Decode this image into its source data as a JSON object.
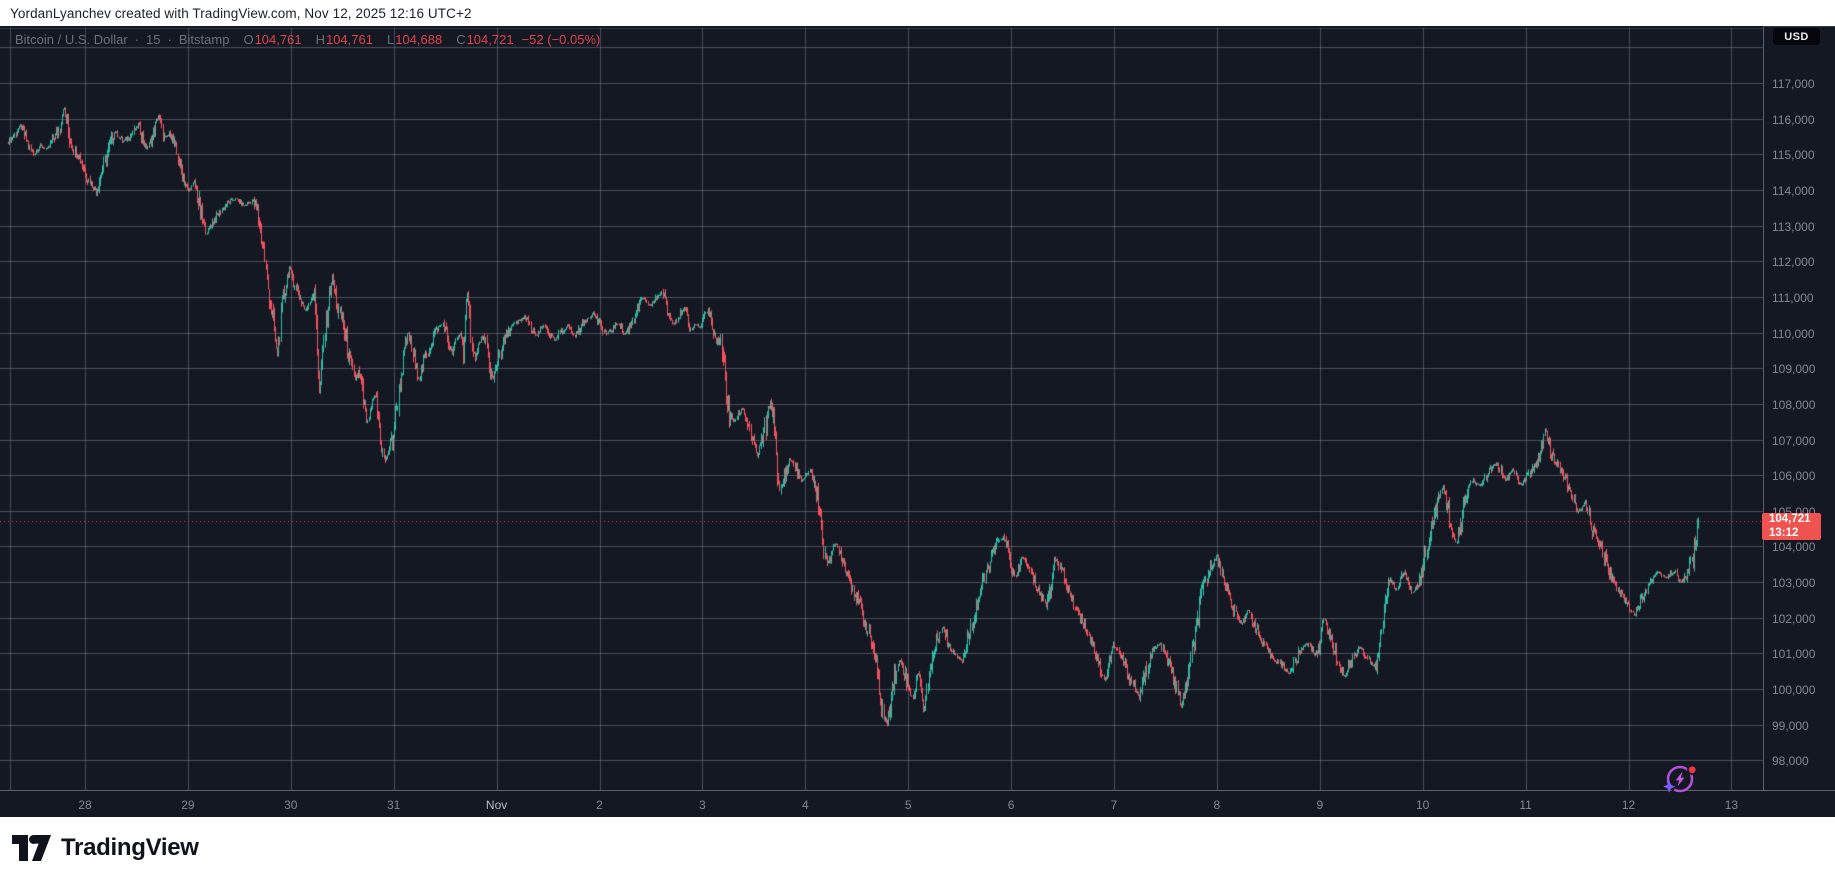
{
  "attribution": "YordanLyanchev created with TradingView.com, Nov 12, 2025 12:16 UTC+2",
  "header": {
    "symbol_title": "Bitcoin / U.S. Dollar",
    "interval": "15",
    "exchange": "Bitstamp",
    "sep": "·",
    "ohlc": {
      "o_label": "O",
      "o": "104,761",
      "h_label": "H",
      "h": "104,761",
      "l_label": "L",
      "l": "104,688",
      "c_label": "C",
      "c": "104,721",
      "change": "−52 (−0.05%)"
    }
  },
  "currency_button": "USD",
  "price_label": {
    "price": "104,721",
    "countdown": "13:12"
  },
  "logo_text": "TradingView",
  "colors": {
    "background": "#141822",
    "grid": "rgba(151,155,170,0.42)",
    "candle_up": "#2fbda6",
    "candle_down": "#f4525f",
    "accent_red": "#f23645",
    "badge": "#ef5350",
    "axis_text": "#838792",
    "flash_purple": "#b44fd8",
    "flash_indigo": "#7c5cff"
  },
  "chart_data": {
    "type": "candlestick",
    "title": "Bitcoin / U.S. Dollar · 15 · Bitstamp",
    "symbol": "BTC/USD",
    "exchange": "Bitstamp",
    "interval_minutes": 15,
    "current_price": 104721,
    "countdown": "13:12",
    "ohlc_current": {
      "open": 104761,
      "high": 104761,
      "low": 104688,
      "close": 104721,
      "change": -52,
      "change_pct": -0.05
    },
    "price_axis": {
      "min": 98000,
      "max": 117000,
      "step": 1000
    },
    "time_axis": {
      "labels": [
        "28",
        "29",
        "30",
        "31",
        "Nov",
        "2",
        "3",
        "4",
        "5",
        "6",
        "7",
        "8",
        "9",
        "10",
        "11",
        "12",
        "13"
      ],
      "month_label_index": 4
    },
    "range_high": 116430,
    "range_low": 98950,
    "price_path": [
      [
        8,
        115350
      ],
      [
        14,
        115550
      ],
      [
        20,
        115820
      ],
      [
        26,
        115400
      ],
      [
        33,
        114980
      ],
      [
        40,
        115250
      ],
      [
        47,
        115120
      ],
      [
        54,
        115480
      ],
      [
        59,
        115700
      ],
      [
        63,
        116340
      ],
      [
        68,
        115600
      ],
      [
        73,
        115150
      ],
      [
        80,
        114880
      ],
      [
        87,
        114350
      ],
      [
        96,
        113960
      ],
      [
        101,
        114450
      ],
      [
        108,
        115120
      ],
      [
        115,
        115660
      ],
      [
        122,
        115350
      ],
      [
        130,
        115520
      ],
      [
        138,
        115820
      ],
      [
        146,
        115150
      ],
      [
        152,
        115450
      ],
      [
        158,
        116120
      ],
      [
        164,
        115420
      ],
      [
        170,
        115600
      ],
      [
        176,
        115050
      ],
      [
        182,
        114400
      ],
      [
        188,
        113960
      ],
      [
        194,
        114220
      ],
      [
        200,
        113400
      ],
      [
        206,
        112820
      ],
      [
        212,
        113100
      ],
      [
        220,
        113400
      ],
      [
        228,
        113650
      ],
      [
        235,
        113740
      ],
      [
        244,
        113560
      ],
      [
        252,
        113700
      ],
      [
        258,
        113250
      ],
      [
        263,
        112400
      ],
      [
        268,
        111150
      ],
      [
        273,
        110300
      ],
      [
        277,
        109360
      ],
      [
        281,
        110600
      ],
      [
        285,
        111300
      ],
      [
        289,
        111830
      ],
      [
        294,
        111400
      ],
      [
        299,
        111000
      ],
      [
        305,
        110600
      ],
      [
        309,
        110900
      ],
      [
        313,
        111120
      ],
      [
        316,
        110400
      ],
      [
        319,
        108150
      ],
      [
        323,
        109600
      ],
      [
        328,
        110900
      ],
      [
        332,
        111590
      ],
      [
        337,
        110700
      ],
      [
        342,
        110300
      ],
      [
        348,
        109400
      ],
      [
        354,
        108720
      ],
      [
        358,
        108900
      ],
      [
        362,
        108300
      ],
      [
        367,
        107420
      ],
      [
        371,
        107900
      ],
      [
        375,
        108300
      ],
      [
        378,
        107600
      ],
      [
        381,
        106900
      ],
      [
        384,
        106360
      ],
      [
        388,
        106700
      ],
      [
        393,
        107100
      ],
      [
        398,
        108200
      ],
      [
        403,
        109300
      ],
      [
        408,
        110020
      ],
      [
        412,
        109500
      ],
      [
        416,
        108900
      ],
      [
        419,
        108700
      ],
      [
        424,
        109200
      ],
      [
        429,
        109600
      ],
      [
        434,
        110000
      ],
      [
        439,
        110150
      ],
      [
        443,
        110270
      ],
      [
        448,
        109700
      ],
      [
        452,
        109400
      ],
      [
        456,
        109800
      ],
      [
        460,
        110000
      ],
      [
        463,
        109500
      ],
      [
        467,
        111080
      ],
      [
        470,
        110200
      ],
      [
        474,
        109260
      ],
      [
        478,
        109600
      ],
      [
        482,
        109900
      ],
      [
        486,
        109500
      ],
      [
        490,
        108900
      ],
      [
        493,
        108660
      ],
      [
        498,
        109300
      ],
      [
        504,
        109800
      ],
      [
        511,
        110150
      ],
      [
        518,
        110300
      ],
      [
        525,
        110450
      ],
      [
        531,
        110050
      ],
      [
        537,
        109900
      ],
      [
        543,
        110200
      ],
      [
        549,
        109960
      ],
      [
        555,
        109750
      ],
      [
        561,
        110050
      ],
      [
        568,
        110200
      ],
      [
        574,
        109880
      ],
      [
        580,
        110150
      ],
      [
        587,
        110400
      ],
      [
        593,
        110540
      ],
      [
        600,
        110200
      ],
      [
        606,
        109950
      ],
      [
        612,
        110100
      ],
      [
        618,
        110280
      ],
      [
        624,
        109940
      ],
      [
        630,
        110200
      ],
      [
        637,
        110650
      ],
      [
        643,
        111000
      ],
      [
        648,
        110720
      ],
      [
        653,
        110850
      ],
      [
        658,
        111050
      ],
      [
        662,
        111140
      ],
      [
        666,
        110700
      ],
      [
        670,
        110400
      ],
      [
        674,
        110270
      ],
      [
        679,
        110500
      ],
      [
        684,
        110650
      ],
      [
        690,
        110050
      ],
      [
        695,
        110250
      ],
      [
        700,
        110130
      ],
      [
        704,
        110500
      ],
      [
        708,
        110640
      ],
      [
        712,
        110100
      ],
      [
        716,
        109650
      ],
      [
        720,
        109900
      ],
      [
        724,
        108900
      ],
      [
        728,
        107820
      ],
      [
        733,
        107500
      ],
      [
        738,
        107680
      ],
      [
        742,
        107900
      ],
      [
        747,
        107500
      ],
      [
        752,
        107000
      ],
      [
        757,
        106520
      ],
      [
        761,
        106900
      ],
      [
        765,
        107320
      ],
      [
        770,
        108080
      ],
      [
        774,
        107500
      ],
      [
        777,
        106300
      ],
      [
        779,
        105320
      ],
      [
        782,
        105800
      ],
      [
        786,
        106100
      ],
      [
        790,
        106450
      ],
      [
        794,
        106300
      ],
      [
        798,
        106000
      ],
      [
        802,
        105850
      ],
      [
        806,
        105950
      ],
      [
        810,
        106200
      ],
      [
        814,
        105700
      ],
      [
        818,
        105350
      ],
      [
        822,
        104400
      ],
      [
        825,
        103460
      ],
      [
        829,
        103700
      ],
      [
        833,
        103900
      ],
      [
        836,
        104080
      ],
      [
        839,
        103900
      ],
      [
        843,
        103600
      ],
      [
        848,
        103200
      ],
      [
        852,
        102900
      ],
      [
        857,
        102500
      ],
      [
        861,
        102200
      ],
      [
        865,
        101870
      ],
      [
        869,
        101500
      ],
      [
        872,
        101300
      ],
      [
        875,
        100800
      ],
      [
        878,
        100250
      ],
      [
        881,
        99600
      ],
      [
        884,
        99200
      ],
      [
        887,
        98960
      ],
      [
        890,
        99700
      ],
      [
        893,
        100250
      ],
      [
        897,
        100600
      ],
      [
        900,
        100820
      ],
      [
        904,
        100500
      ],
      [
        907,
        100180
      ],
      [
        910,
        99900
      ],
      [
        913,
        99750
      ],
      [
        916,
        100250
      ],
      [
        919,
        100550
      ],
      [
        923,
        99320
      ],
      [
        927,
        100100
      ],
      [
        931,
        100700
      ],
      [
        935,
        101200
      ],
      [
        939,
        101550
      ],
      [
        942,
        101780
      ],
      [
        946,
        101400
      ],
      [
        950,
        101150
      ],
      [
        954,
        101050
      ],
      [
        958,
        100900
      ],
      [
        962,
        100790
      ],
      [
        966,
        101200
      ],
      [
        970,
        101700
      ],
      [
        974,
        102100
      ],
      [
        978,
        102500
      ],
      [
        982,
        102900
      ],
      [
        986,
        103300
      ],
      [
        990,
        103600
      ],
      [
        995,
        103950
      ],
      [
        999,
        104180
      ],
      [
        1002,
        104290
      ],
      [
        1005,
        104050
      ],
      [
        1008,
        103800
      ],
      [
        1012,
        103350
      ],
      [
        1015,
        103100
      ],
      [
        1019,
        103450
      ],
      [
        1022,
        103730
      ],
      [
        1026,
        103500
      ],
      [
        1030,
        103280
      ],
      [
        1034,
        103000
      ],
      [
        1038,
        102780
      ],
      [
        1042,
        102550
      ],
      [
        1046,
        102370
      ],
      [
        1049,
        102800
      ],
      [
        1053,
        103400
      ],
      [
        1056,
        103680
      ],
      [
        1060,
        103350
      ],
      [
        1064,
        103080
      ],
      [
        1068,
        102800
      ],
      [
        1072,
        102500
      ],
      [
        1077,
        102200
      ],
      [
        1083,
        101880
      ],
      [
        1087,
        101650
      ],
      [
        1090,
        101420
      ],
      [
        1094,
        101100
      ],
      [
        1097,
        100900
      ],
      [
        1101,
        100500
      ],
      [
        1104,
        100210
      ],
      [
        1108,
        100700
      ],
      [
        1113,
        101260
      ],
      [
        1117,
        101050
      ],
      [
        1121,
        100880
      ],
      [
        1125,
        100650
      ],
      [
        1129,
        100350
      ],
      [
        1134,
        100080
      ],
      [
        1139,
        99750
      ],
      [
        1143,
        100200
      ],
      [
        1147,
        100650
      ],
      [
        1151,
        101000
      ],
      [
        1156,
        101180
      ],
      [
        1160,
        101260
      ],
      [
        1164,
        101000
      ],
      [
        1168,
        100780
      ],
      [
        1172,
        100400
      ],
      [
        1176,
        100100
      ],
      [
        1181,
        99520
      ],
      [
        1185,
        99900
      ],
      [
        1188,
        100420
      ],
      [
        1192,
        101000
      ],
      [
        1196,
        101800
      ],
      [
        1201,
        102500
      ],
      [
        1205,
        103000
      ],
      [
        1209,
        103350
      ],
      [
        1213,
        103580
      ],
      [
        1217,
        103730
      ],
      [
        1220,
        103400
      ],
      [
        1224,
        103100
      ],
      [
        1228,
        102600
      ],
      [
        1232,
        102300
      ],
      [
        1237,
        102000
      ],
      [
        1241,
        101850
      ],
      [
        1245,
        102050
      ],
      [
        1248,
        102200
      ],
      [
        1252,
        101950
      ],
      [
        1256,
        101700
      ],
      [
        1260,
        101400
      ],
      [
        1264,
        101200
      ],
      [
        1269,
        101000
      ],
      [
        1274,
        100850
      ],
      [
        1280,
        100700
      ],
      [
        1285,
        100550
      ],
      [
        1289,
        100440
      ],
      [
        1294,
        100700
      ],
      [
        1298,
        100980
      ],
      [
        1303,
        101200
      ],
      [
        1307,
        101300
      ],
      [
        1311,
        101100
      ],
      [
        1315,
        100920
      ],
      [
        1320,
        101400
      ],
      [
        1324,
        101960
      ],
      [
        1328,
        101600
      ],
      [
        1332,
        101280
      ],
      [
        1336,
        100950
      ],
      [
        1340,
        100600
      ],
      [
        1344,
        100350
      ],
      [
        1348,
        100600
      ],
      [
        1352,
        100820
      ],
      [
        1356,
        101050
      ],
      [
        1360,
        101200
      ],
      [
        1364,
        101000
      ],
      [
        1368,
        100820
      ],
      [
        1372,
        100680
      ],
      [
        1375,
        100580
      ],
      [
        1378,
        100900
      ],
      [
        1381,
        101500
      ],
      [
        1384,
        102300
      ],
      [
        1388,
        103150
      ],
      [
        1392,
        102950
      ],
      [
        1396,
        102750
      ],
      [
        1400,
        103100
      ],
      [
        1404,
        103300
      ],
      [
        1408,
        102950
      ],
      [
        1412,
        102700
      ],
      [
        1416,
        102950
      ],
      [
        1420,
        103100
      ],
      [
        1424,
        103600
      ],
      [
        1428,
        104200
      ],
      [
        1432,
        104700
      ],
      [
        1436,
        105050
      ],
      [
        1440,
        105450
      ],
      [
        1443,
        105690
      ],
      [
        1447,
        105100
      ],
      [
        1450,
        104750
      ],
      [
        1453,
        104300
      ],
      [
        1456,
        104060
      ],
      [
        1460,
        104600
      ],
      [
        1464,
        105200
      ],
      [
        1468,
        105600
      ],
      [
        1472,
        105880
      ],
      [
        1476,
        105750
      ],
      [
        1480,
        105680
      ],
      [
        1484,
        105900
      ],
      [
        1488,
        106080
      ],
      [
        1492,
        106220
      ],
      [
        1497,
        106320
      ],
      [
        1501,
        106050
      ],
      [
        1505,
        105820
      ],
      [
        1509,
        106000
      ],
      [
        1512,
        106180
      ],
      [
        1516,
        105950
      ],
      [
        1520,
        105720
      ],
      [
        1524,
        105850
      ],
      [
        1528,
        106000
      ],
      [
        1532,
        106180
      ],
      [
        1536,
        106340
      ],
      [
        1540,
        106600
      ],
      [
        1545,
        107290
      ],
      [
        1549,
        106800
      ],
      [
        1552,
        106500
      ],
      [
        1556,
        106350
      ],
      [
        1560,
        106200
      ],
      [
        1565,
        105850
      ],
      [
        1570,
        105520
      ],
      [
        1574,
        105250
      ],
      [
        1578,
        104960
      ],
      [
        1582,
        105100
      ],
      [
        1585,
        105200
      ],
      [
        1589,
        104800
      ],
      [
        1592,
        104430
      ],
      [
        1596,
        104260
      ],
      [
        1600,
        104100
      ],
      [
        1604,
        103700
      ],
      [
        1608,
        103320
      ],
      [
        1612,
        103100
      ],
      [
        1616,
        102900
      ],
      [
        1620,
        102700
      ],
      [
        1624,
        102520
      ],
      [
        1629,
        102300
      ],
      [
        1634,
        102110
      ],
      [
        1638,
        102350
      ],
      [
        1642,
        102580
      ],
      [
        1646,
        102800
      ],
      [
        1650,
        103000
      ],
      [
        1654,
        103180
      ],
      [
        1658,
        103300
      ],
      [
        1662,
        103200
      ],
      [
        1666,
        103120
      ],
      [
        1670,
        103220
      ],
      [
        1674,
        103300
      ],
      [
        1677,
        103150
      ],
      [
        1680,
        102960
      ],
      [
        1683,
        103080
      ],
      [
        1686,
        103200
      ],
      [
        1689,
        103400
      ],
      [
        1692,
        103620
      ],
      [
        1695,
        104100
      ],
      [
        1698,
        104721
      ]
    ]
  }
}
